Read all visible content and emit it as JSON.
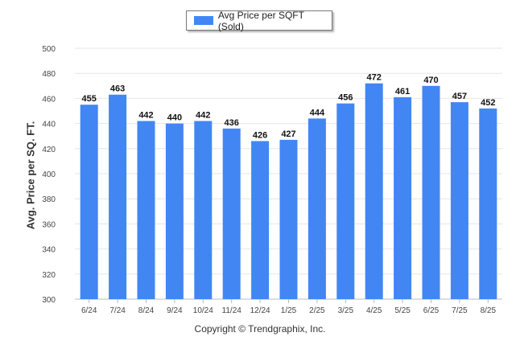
{
  "legend": {
    "label": "Avg Price per SQFT (Sold)"
  },
  "footer": {
    "copyright": "Copyright © Trendgraphix, Inc."
  },
  "colors": {
    "bar": "#4286f4",
    "grid": "#e6e6e6",
    "axis": "#bbbbbb"
  },
  "chart_data": {
    "type": "bar",
    "title": "",
    "xlabel": "",
    "ylabel": "Avg. Price per SQ. FT.",
    "ylim": [
      300,
      500
    ],
    "yticks": [
      300,
      320,
      340,
      360,
      380,
      400,
      420,
      440,
      460,
      480,
      500
    ],
    "grid": true,
    "legend_position": "top-center",
    "categories": [
      "6/24",
      "7/24",
      "8/24",
      "9/24",
      "10/24",
      "11/24",
      "12/24",
      "1/25",
      "2/25",
      "3/25",
      "4/25",
      "5/25",
      "6/25",
      "7/25",
      "8/25"
    ],
    "series": [
      {
        "name": "Avg Price per SQFT (Sold)",
        "values": [
          455,
          463,
          442,
          440,
          442,
          436,
          426,
          427,
          444,
          456,
          472,
          461,
          470,
          457,
          452
        ]
      }
    ]
  }
}
